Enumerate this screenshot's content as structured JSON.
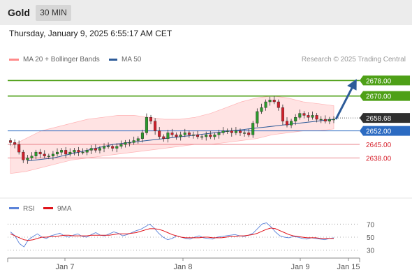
{
  "header": {
    "instrument": "Gold",
    "timeframe": "30 MIN",
    "datetime": "Thursday, January 9, 2025 6:55:17 AM CET"
  },
  "legend": {
    "bollinger": "MA 20 + Bollinger Bands",
    "ma50": "MA 50",
    "credit": "Research © 2025 Trading Central",
    "rsi": "RSI",
    "rsi_ma": "9MA"
  },
  "colors": {
    "resistance": "#4ea017",
    "support": "#2c6bc2",
    "minor_support": "#e8828a",
    "bollinger": "#ff8a8a",
    "ma50": "#2d5b99",
    "rsi": "#5b83d9",
    "rsi_ma": "#e0141b",
    "candle_up": "#2b9a2b",
    "candle_down": "#d11f2a"
  },
  "chart_data": [
    {
      "type": "candlestick",
      "x_labels": [
        "Jan 7",
        "Jan 8",
        "Jan 9",
        "Jan 15"
      ],
      "ylim": [
        2618,
        2685
      ],
      "current_price": 2658.68,
      "levels": [
        {
          "value": 2678.0,
          "label": "2678.00",
          "kind": "resistance"
        },
        {
          "value": 2670.0,
          "label": "2670.00",
          "kind": "resistance"
        },
        {
          "value": 2652.0,
          "label": "2652.00",
          "kind": "support"
        },
        {
          "value": 2645.0,
          "label": "2645.00",
          "kind": "minor_support"
        },
        {
          "value": 2638.0,
          "label": "2638.00",
          "kind": "minor_support"
        }
      ],
      "current_label": "2658.68",
      "close_series": [
        2646,
        2645,
        2641,
        2637,
        2638,
        2639,
        2641,
        2640,
        2639,
        2639,
        2640,
        2641,
        2642,
        2640,
        2641,
        2642,
        2641,
        2641,
        2642,
        2643,
        2642,
        2643,
        2644,
        2644,
        2643,
        2644,
        2645,
        2646,
        2646,
        2647,
        2648,
        2651,
        2659,
        2657,
        2652,
        2649,
        2648,
        2651,
        2650,
        2649,
        2650,
        2651,
        2650,
        2650,
        2649,
        2649,
        2650,
        2649,
        2650,
        2651,
        2652,
        2652,
        2651,
        2652,
        2651,
        2651,
        2650,
        2656,
        2662,
        2664,
        2667,
        2668,
        2667,
        2664,
        2657,
        2655,
        2657,
        2659,
        2661,
        2660,
        2659,
        2660,
        2658,
        2658,
        2657,
        2658,
        2658
      ],
      "ma50_series": [
        2636.5,
        2637,
        2637.5,
        2638,
        2639,
        2640,
        2641,
        2642,
        2643,
        2644,
        2645,
        2645.5,
        2646,
        2646.5,
        2647,
        2647.5,
        2648,
        2648.5,
        2649,
        2649.5,
        2650,
        2650.5,
        2651,
        2651.5,
        2652,
        2652.5,
        2653,
        2653.5,
        2654,
        2654.5,
        2655,
        2655.5,
        2656,
        2656.5,
        2657,
        2657.5,
        2658
      ],
      "bollinger_upper": [
        2644,
        2648,
        2652,
        2654,
        2656,
        2658,
        2659,
        2660,
        2660,
        2659,
        2658,
        2658,
        2659,
        2661,
        2664,
        2667,
        2669,
        2670,
        2669,
        2667,
        2666,
        2665
      ],
      "bollinger_lower": [
        2630,
        2631,
        2633,
        2635,
        2637,
        2638,
        2639,
        2640,
        2641,
        2642,
        2643,
        2644,
        2645,
        2645,
        2646,
        2647,
        2648,
        2650,
        2651,
        2652,
        2652,
        2653
      ]
    },
    {
      "type": "line",
      "title": "RSI",
      "ylim": [
        20,
        80
      ],
      "y_ticks": [
        70,
        50,
        30
      ],
      "series": [
        {
          "name": "RSI",
          "values": [
            58,
            52,
            40,
            35,
            46,
            51,
            55,
            50,
            48,
            52,
            54,
            56,
            52,
            50,
            53,
            55,
            51,
            50,
            54,
            57,
            53,
            52,
            55,
            58,
            56,
            52,
            54,
            57,
            60,
            62,
            66,
            70,
            64,
            56,
            50,
            46,
            48,
            52,
            50,
            48,
            47,
            50,
            52,
            49,
            48,
            47,
            50,
            51,
            52,
            53,
            54,
            52,
            51,
            53,
            56,
            63,
            70,
            72,
            66,
            58,
            52,
            50,
            49,
            51,
            50,
            48,
            47,
            49,
            48,
            47,
            46,
            48,
            49
          ]
        },
        {
          "name": "9MA",
          "values": [
            55,
            52,
            49,
            46,
            45,
            46,
            48,
            50,
            50,
            51,
            51,
            52,
            53,
            53,
            52,
            52,
            52,
            52,
            53,
            53,
            53,
            53,
            53,
            54,
            55,
            55,
            55,
            56,
            57,
            59,
            61,
            63,
            63,
            62,
            60,
            57,
            54,
            52,
            50,
            49,
            49,
            49,
            49,
            50,
            50,
            49,
            49,
            49,
            50,
            51,
            51,
            52,
            52,
            53,
            54,
            56,
            59,
            62,
            64,
            63,
            60,
            57,
            54,
            52,
            51,
            50,
            49,
            49,
            49,
            48,
            48,
            48,
            48
          ]
        }
      ]
    }
  ]
}
